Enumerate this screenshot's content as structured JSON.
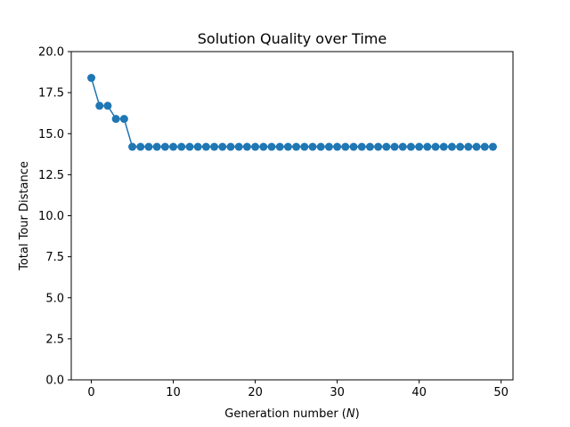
{
  "chart_data": {
    "type": "line",
    "title": "Solution Quality over Time",
    "xlabel": "Generation number (N)",
    "ylabel": "Total Tour Distance",
    "xlim": [
      -2.45,
      51.45
    ],
    "ylim": [
      0,
      20
    ],
    "x_ticks": [
      0,
      10,
      20,
      30,
      40,
      50
    ],
    "y_ticks": [
      0.0,
      2.5,
      5.0,
      7.5,
      10.0,
      12.5,
      15.0,
      17.5,
      20.0
    ],
    "x_tick_labels": [
      "0",
      "10",
      "20",
      "30",
      "40",
      "50"
    ],
    "y_tick_labels": [
      "0.0",
      "2.5",
      "5.0",
      "7.5",
      "10.0",
      "12.5",
      "15.0",
      "17.5",
      "20.0"
    ],
    "grid": false,
    "marker": "circle",
    "series": [
      {
        "color": "#1f77b4",
        "x": [
          0,
          1,
          2,
          3,
          4,
          5,
          6,
          7,
          8,
          9,
          10,
          11,
          12,
          13,
          14,
          15,
          16,
          17,
          18,
          19,
          20,
          21,
          22,
          23,
          24,
          25,
          26,
          27,
          28,
          29,
          30,
          31,
          32,
          33,
          34,
          35,
          36,
          37,
          38,
          39,
          40,
          41,
          42,
          43,
          44,
          45,
          46,
          47,
          48,
          49
        ],
        "values": [
          18.4,
          16.7,
          16.7,
          15.9,
          15.9,
          14.2,
          14.2,
          14.2,
          14.2,
          14.2,
          14.2,
          14.2,
          14.2,
          14.2,
          14.2,
          14.2,
          14.2,
          14.2,
          14.2,
          14.2,
          14.2,
          14.2,
          14.2,
          14.2,
          14.2,
          14.2,
          14.2,
          14.2,
          14.2,
          14.2,
          14.2,
          14.2,
          14.2,
          14.2,
          14.2,
          14.2,
          14.2,
          14.2,
          14.2,
          14.2,
          14.2,
          14.2,
          14.2,
          14.2,
          14.2,
          14.2,
          14.2,
          14.2,
          14.2,
          14.2
        ]
      }
    ]
  }
}
